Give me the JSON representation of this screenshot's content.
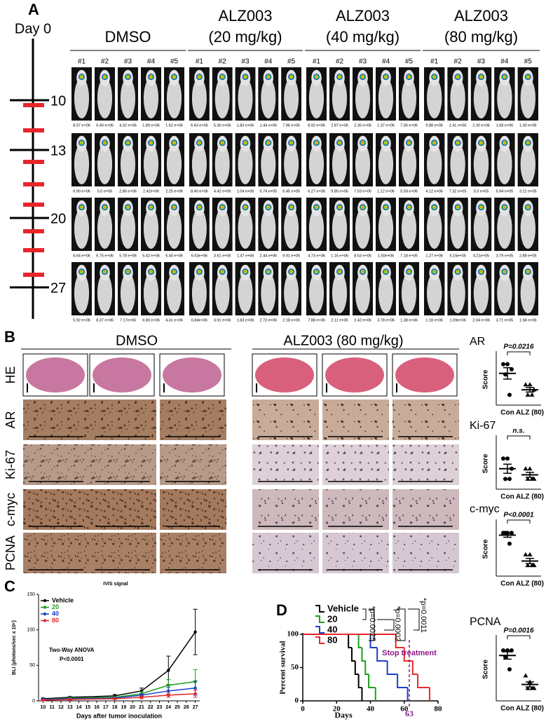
{
  "panel_a": {
    "label": "A",
    "timeline_label": "Day 0",
    "days": [
      "10",
      "13",
      "20",
      "27"
    ],
    "groups": [
      [
        "DMSO"
      ],
      [
        "ALZ003",
        "(20 mg/kg)"
      ],
      [
        "ALZ003",
        "(40 mg/kg)"
      ],
      [
        "ALZ003",
        "(80 mg/kg)"
      ]
    ],
    "mouse_ids": [
      "#1",
      "#2",
      "#3",
      "#4",
      "#5"
    ],
    "signals": [
      [
        "8.97 e+06",
        "6.49 e+06",
        "4.32 e+06",
        "1.89 e+06",
        "1.62 e+06",
        "6.43 e+06",
        "5.30 e+06",
        "1.83 e+06",
        "1.44 e+06",
        "7.96 e+06",
        "8.92 e+06",
        "2.87 e+06",
        "2.35 e+06",
        "1.37 e+06",
        "7.06 e+06",
        "9.88 e+06",
        "2.41 e+06",
        "2.30 e+06",
        "1.68 e+06",
        "1.00 e+06"
      ],
      [
        "6.90 e+06",
        "5.0 e+06",
        "2.86 e+06",
        "2.42e+06",
        "2.25 e+06",
        "8.40 e+06",
        "4.42 e+06",
        "1.04 e+06",
        "5.74 e+05",
        "6.45 e+05",
        "6.27 e+06",
        "9.85 e+05",
        "7.53 e+05",
        "1.12 e+06",
        "5.59 e+06",
        "4.12 e+06",
        "7.32 e+05",
        "5.0 e+05",
        "5.94 e+05",
        "3.21 e+05"
      ],
      [
        "6.64 e+06",
        "6.75 e+06",
        "5.78 e+06",
        "5.42 e+06",
        "5.40 e+06",
        "6.53e+06",
        "3.61 e+06",
        "1.47 e+06",
        "2.44 e+06",
        "9.91 e+05",
        "4.73 e+06",
        "1.16 e+06",
        "8.63 e+05",
        "1.50e+06",
        "7.18 e+05",
        "1.27 e+06",
        "5.15e+05",
        "4.21e+05",
        "3.79 e+05",
        "2.89 e+05"
      ],
      [
        "5.92 e+06",
        "8.37 e+06",
        "7.17e+06",
        "6.80 e+06",
        "4.41 e+06",
        "6.84e+06",
        "3.91 e+06",
        "1.83 e+06",
        "2.73 e+06",
        "2.18 e+06",
        "7.88 e+06",
        "2.11 e+06",
        "2.42 e+06",
        "3.78 e+06",
        "1.38 e+06",
        "1.18 e+06",
        "1.09e+06",
        "2.04 e+06",
        "3.71 e+05",
        "1.68 e+06"
      ]
    ]
  },
  "panel_b": {
    "label": "B",
    "groups": [
      "DMSO",
      "ALZ003 (80 mg/kg)"
    ],
    "stains": [
      "HE",
      "AR",
      "Ki-67",
      "c-myc",
      "PCNA"
    ]
  },
  "panel_c_label": "C",
  "panel_d_label": "D",
  "chart_data": [
    {
      "type": "dot",
      "title": "AR",
      "ylabel": "Score",
      "categories": [
        "Con",
        "ALZ (80)"
      ],
      "values": [
        [
          4,
          4,
          3.5,
          3,
          1
        ],
        [
          2,
          2,
          1.5,
          1,
          1
        ]
      ],
      "ylim": [
        0,
        5
      ],
      "p_label": "P=0.0216",
      "color": "#000000"
    },
    {
      "type": "dot",
      "title": "Ki-67",
      "ylabel": "Score",
      "categories": [
        "Con",
        "ALZ (80)"
      ],
      "values": [
        [
          3,
          3,
          2,
          1,
          1
        ],
        [
          2,
          2,
          1,
          1,
          1
        ]
      ],
      "ylim": [
        0,
        5
      ],
      "p_label": "n.s.",
      "color": "#000000"
    },
    {
      "type": "dot",
      "title": "c-myc",
      "ylabel": "Score",
      "categories": [
        "Con",
        "ALZ (80)"
      ],
      "values": [
        [
          4,
          4,
          4,
          4,
          3
        ],
        [
          2,
          2,
          1,
          1,
          1
        ]
      ],
      "ylim": [
        0,
        5
      ],
      "p_label": "P<0.0001",
      "color": "#000000"
    },
    {
      "type": "dot",
      "title": "PCNA",
      "ylabel": "Score",
      "categories": [
        "Con",
        "ALZ (80)"
      ],
      "values": [
        [
          4,
          4,
          4,
          3.5,
          2.5
        ],
        [
          2,
          1.5,
          1,
          1,
          1
        ]
      ],
      "ylim": [
        0,
        5
      ],
      "p_label": "P=0.0016",
      "color": "#000000"
    },
    {
      "type": "line",
      "title": "IVIS signal",
      "ylabel": "BLI (photons/sec x 10⁶)",
      "xlabel": "Days after tumor inoculation",
      "x": [
        10,
        13,
        18,
        21,
        24,
        27
      ],
      "xlim": [
        9.5,
        27.5
      ],
      "xticks": [
        10,
        11,
        12,
        13,
        14,
        15,
        16,
        17,
        18,
        19,
        20,
        21,
        22,
        23,
        24,
        25,
        26,
        27
      ],
      "ylim": [
        0,
        150
      ],
      "yticks": [
        0,
        50,
        100,
        150
      ],
      "series": [
        {
          "name": "Vehicle",
          "color": "#000000",
          "values": [
            3,
            5,
            7,
            14,
            43,
            97
          ],
          "errors": [
            1,
            1,
            2,
            4,
            20,
            32
          ]
        },
        {
          "name": "20",
          "color": "#1aa01a",
          "values": [
            2,
            4,
            5,
            10,
            22,
            27
          ],
          "errors": [
            1,
            1,
            1,
            3,
            8,
            17
          ]
        },
        {
          "name": "40",
          "color": "#1a3fc8",
          "values": [
            2,
            3,
            4,
            8,
            14,
            18
          ],
          "errors": [
            1,
            1,
            1,
            2,
            5,
            10
          ]
        },
        {
          "name": "80",
          "color": "#e8262a",
          "values": [
            1,
            2,
            3,
            5,
            8,
            10
          ],
          "errors": [
            1,
            1,
            1,
            2,
            3,
            5
          ]
        }
      ],
      "annotations": [
        "Two-Way ANOVA",
        "P<0.0001"
      ]
    },
    {
      "type": "step",
      "ylabel": "Percent survival",
      "xlabel": "Days",
      "xlim": [
        0,
        80
      ],
      "xticks": [
        0,
        20,
        40,
        60,
        80
      ],
      "ylim": [
        0,
        100
      ],
      "yticks": [
        0,
        50,
        100
      ],
      "series": [
        {
          "name": "Vehicle",
          "color": "#000000",
          "x": [
            0,
            27,
            29,
            31,
            33,
            35
          ],
          "values": [
            100,
            80,
            60,
            40,
            20,
            0
          ]
        },
        {
          "name": "20",
          "color": "#1aa01a",
          "x": [
            0,
            33,
            35,
            37,
            39,
            43
          ],
          "values": [
            100,
            80,
            60,
            40,
            20,
            0
          ]
        },
        {
          "name": "40",
          "color": "#1a3fc8",
          "x": [
            0,
            40,
            44,
            50,
            56,
            62
          ],
          "values": [
            100,
            80,
            60,
            40,
            20,
            0
          ]
        },
        {
          "name": "80",
          "color": "#e8262a",
          "x": [
            0,
            55,
            60,
            65,
            68,
            75
          ],
          "values": [
            100,
            80,
            60,
            40,
            20,
            0
          ]
        }
      ],
      "p_values": [
        "*p=0.0025",
        "*p=0.0002",
        "*p=0.0011"
      ],
      "stop_label": "Stop treatment",
      "stop_day": 63,
      "stop_color": "#8b1a89"
    }
  ]
}
